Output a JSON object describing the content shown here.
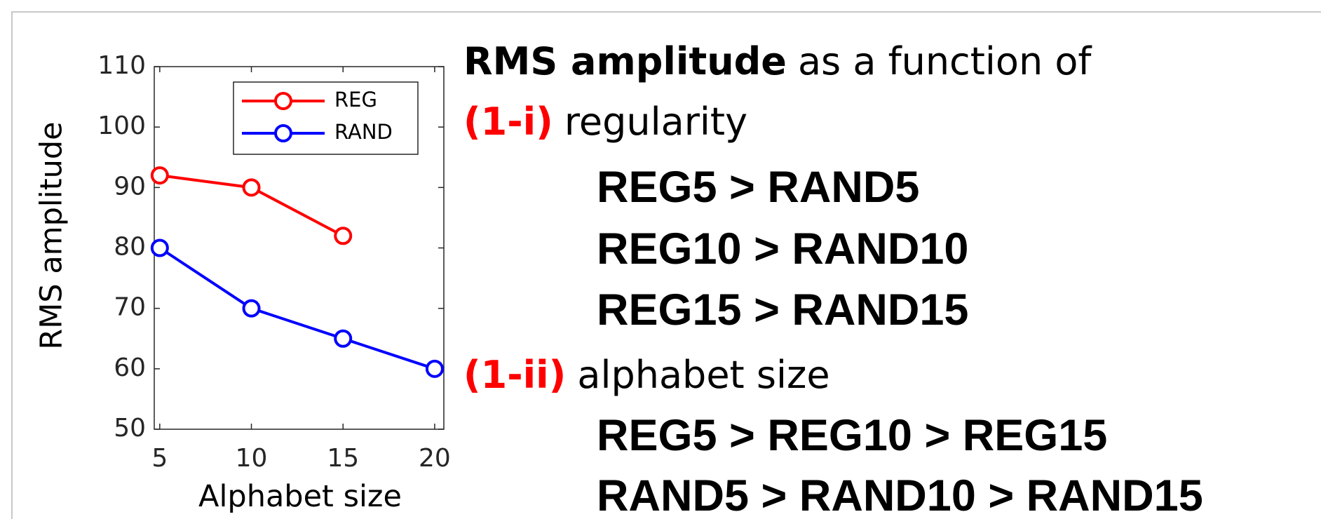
{
  "chart_data": {
    "type": "line",
    "x": [
      5,
      10,
      15,
      20
    ],
    "series": [
      {
        "name": "REG",
        "color": "#ff0000",
        "values": [
          92,
          90,
          82,
          null
        ]
      },
      {
        "name": "RAND",
        "color": "#0000ff",
        "values": [
          80,
          70,
          65,
          60
        ]
      }
    ],
    "xlabel": "Alphabet size",
    "ylabel": "RMS amplitude",
    "xlim": [
      4.7,
      20.5
    ],
    "xticks": [
      5,
      10,
      15,
      20
    ],
    "ylim": [
      50,
      110
    ],
    "yticks": [
      50,
      60,
      70,
      80,
      90,
      100,
      110
    ],
    "legend": "upper right",
    "grid": false
  },
  "text_panel": {
    "heading": [
      "RMS amplitude",
      "as a function of"
    ],
    "part_i": [
      "(1-i)",
      "regularity"
    ],
    "part_i_items": [
      "REG5 > RAND5",
      "REG10 > RAND10",
      "REG15 > RAND15"
    ],
    "part_ii": [
      "(1-ii)",
      "alphabet size"
    ],
    "part_ii_items": [
      "REG5 > REG10 > REG15",
      "RAND5 > RAND10 > RAND15"
    ]
  }
}
